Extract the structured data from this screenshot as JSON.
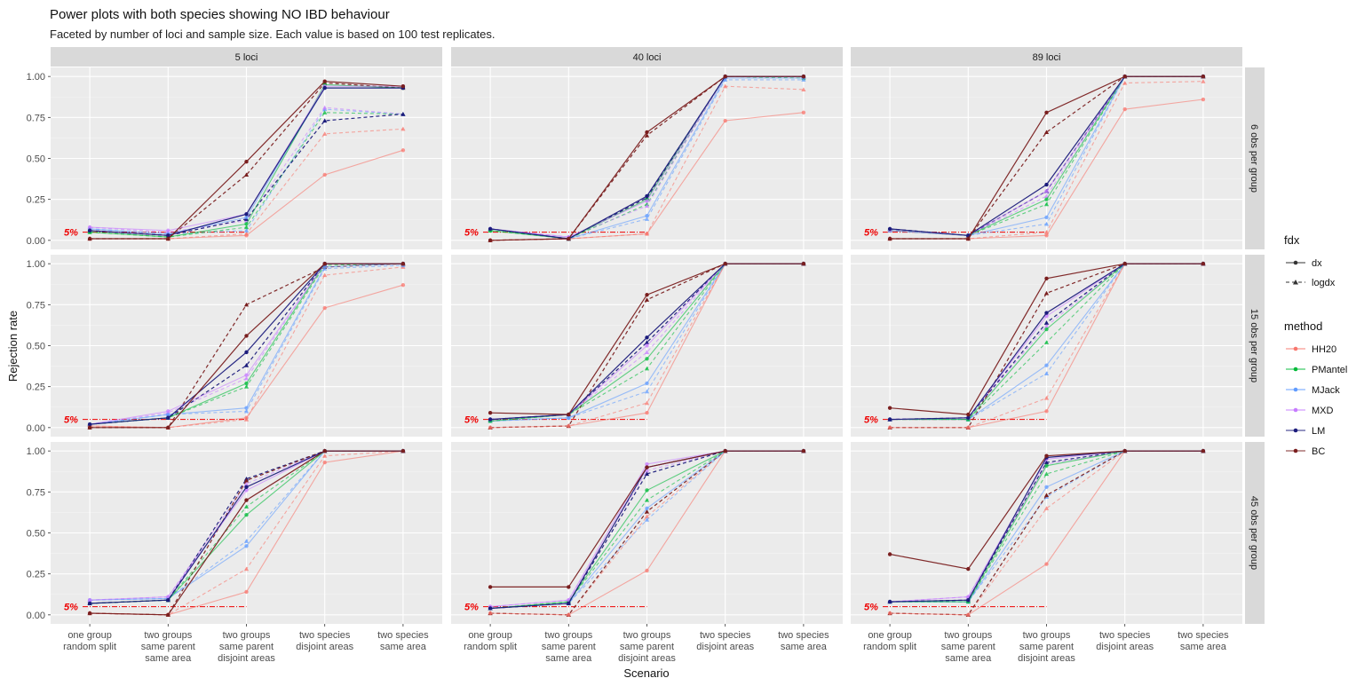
{
  "chart_data": {
    "type": "line",
    "title": "Power plots with both species showing NO IBD behaviour",
    "subtitle": "Faceted by number of loci and sample size. Each value is based on 100 test replicates.",
    "xlabel": "Scenario",
    "ylabel": "Rejection rate",
    "ylim": [
      0,
      1
    ],
    "yticks": [
      "0.00",
      "0.25",
      "0.50",
      "0.75",
      "1.00"
    ],
    "categories": [
      [
        "one group",
        "random split"
      ],
      [
        "two groups",
        "same parent",
        "same area"
      ],
      [
        "two groups",
        "same parent",
        "disjoint areas"
      ],
      [
        "two species",
        "disjoint areas"
      ],
      [
        "two species",
        "same area"
      ]
    ],
    "reference_line": {
      "value": 0.05,
      "label": "5%",
      "color": "#ee0000"
    },
    "col_facets": [
      "5 loci",
      "40 loci",
      "89 loci"
    ],
    "row_facets": [
      "6 obs per group",
      "15 obs per group",
      "45 obs per group"
    ],
    "legend": {
      "fdx_title": "fdx",
      "fdx": [
        {
          "label": "dx",
          "line": "solid",
          "marker": "circle"
        },
        {
          "label": "logdx",
          "line": "dashed",
          "marker": "triangle"
        }
      ],
      "method_title": "method",
      "methods": [
        {
          "label": "HH20",
          "color": "#f8766d"
        },
        {
          "label": "PMantel",
          "color": "#00ba38"
        },
        {
          "label": "MJack",
          "color": "#619cff"
        },
        {
          "label": "MXD",
          "color": "#c77cff"
        },
        {
          "label": "LM",
          "color": "#1c1c7c"
        },
        {
          "label": "BC",
          "color": "#7a1f1f"
        }
      ]
    },
    "panels": [
      {
        "row": 0,
        "col": 0,
        "series": {
          "HH20": {
            "dx": [
              0.01,
              0.01,
              0.03,
              0.4,
              0.55
            ],
            "logdx": [
              0.01,
              0.01,
              0.04,
              0.65,
              0.68
            ]
          },
          "PMantel": {
            "dx": [
              0.05,
              0.02,
              0.1,
              0.95,
              0.93
            ],
            "logdx": [
              0.05,
              0.02,
              0.08,
              0.78,
              0.77
            ]
          },
          "MJack": {
            "dx": [
              0.07,
              0.04,
              0.14,
              0.93,
              0.93
            ],
            "logdx": [
              0.07,
              0.04,
              0.06,
              0.8,
              0.77
            ]
          },
          "MXD": {
            "dx": [
              0.08,
              0.06,
              0.16,
              0.94,
              0.94
            ],
            "logdx": [
              0.08,
              0.05,
              0.12,
              0.81,
              0.77
            ]
          },
          "LM": {
            "dx": [
              0.06,
              0.03,
              0.16,
              0.93,
              0.93
            ],
            "logdx": [
              0.06,
              0.03,
              0.13,
              0.73,
              0.77
            ]
          },
          "BC": {
            "dx": [
              0.01,
              0.01,
              0.48,
              0.97,
              0.94
            ],
            "logdx": [
              0.01,
              0.01,
              0.4,
              0.96,
              0.93
            ]
          }
        }
      },
      {
        "row": 0,
        "col": 1,
        "series": {
          "HH20": {
            "dx": [
              0.0,
              0.01,
              0.04,
              0.73,
              0.78
            ],
            "logdx": [
              0.0,
              0.01,
              0.04,
              0.94,
              0.92
            ]
          },
          "PMantel": {
            "dx": [
              0.06,
              0.01,
              0.25,
              1.0,
              1.0
            ],
            "logdx": [
              0.06,
              0.01,
              0.22,
              1.0,
              0.99
            ]
          },
          "MJack": {
            "dx": [
              0.07,
              0.01,
              0.15,
              0.99,
              0.99
            ],
            "logdx": [
              0.07,
              0.01,
              0.13,
              0.98,
              0.98
            ]
          },
          "MXD": {
            "dx": [
              0.07,
              0.02,
              0.24,
              1.0,
              1.0
            ],
            "logdx": [
              0.07,
              0.02,
              0.21,
              1.0,
              1.0
            ]
          },
          "LM": {
            "dx": [
              0.07,
              0.01,
              0.27,
              1.0,
              1.0
            ],
            "logdx": [
              0.07,
              0.01,
              0.26,
              1.0,
              1.0
            ]
          },
          "BC": {
            "dx": [
              0.0,
              0.01,
              0.66,
              1.0,
              1.0
            ],
            "logdx": [
              0.0,
              0.01,
              0.64,
              1.0,
              1.0
            ]
          }
        }
      },
      {
        "row": 0,
        "col": 2,
        "series": {
          "HH20": {
            "dx": [
              0.01,
              0.01,
              0.03,
              0.8,
              0.86
            ],
            "logdx": [
              0.01,
              0.01,
              0.05,
              0.96,
              0.97
            ]
          },
          "PMantel": {
            "dx": [
              0.06,
              0.03,
              0.25,
              1.0,
              1.0
            ],
            "logdx": [
              0.06,
              0.03,
              0.22,
              1.0,
              1.0
            ]
          },
          "MJack": {
            "dx": [
              0.06,
              0.03,
              0.14,
              1.0,
              1.0
            ],
            "logdx": [
              0.06,
              0.03,
              0.1,
              1.0,
              1.0
            ]
          },
          "MXD": {
            "dx": [
              0.06,
              0.03,
              0.3,
              1.0,
              1.0
            ],
            "logdx": [
              0.06,
              0.03,
              0.27,
              1.0,
              1.0
            ]
          },
          "LM": {
            "dx": [
              0.07,
              0.03,
              0.34,
              1.0,
              1.0
            ],
            "logdx": [
              0.07,
              0.03,
              0.3,
              1.0,
              1.0
            ]
          },
          "BC": {
            "dx": [
              0.01,
              0.01,
              0.78,
              1.0,
              1.0
            ],
            "logdx": [
              0.01,
              0.01,
              0.66,
              1.0,
              1.0
            ]
          }
        }
      },
      {
        "row": 1,
        "col": 0,
        "series": {
          "HH20": {
            "dx": [
              0.01,
              0.0,
              0.06,
              0.73,
              0.87
            ],
            "logdx": [
              0.01,
              0.0,
              0.05,
              0.93,
              0.98
            ]
          },
          "PMantel": {
            "dx": [
              0.02,
              0.06,
              0.27,
              1.0,
              1.0
            ],
            "logdx": [
              0.02,
              0.06,
              0.25,
              0.99,
              1.0
            ]
          },
          "MJack": {
            "dx": [
              0.02,
              0.08,
              0.12,
              0.98,
              1.0
            ],
            "logdx": [
              0.02,
              0.08,
              0.1,
              0.97,
              0.99
            ]
          },
          "MXD": {
            "dx": [
              0.02,
              0.1,
              0.32,
              1.0,
              1.0
            ],
            "logdx": [
              0.02,
              0.09,
              0.3,
              1.0,
              1.0
            ]
          },
          "LM": {
            "dx": [
              0.02,
              0.06,
              0.46,
              1.0,
              1.0
            ],
            "logdx": [
              0.02,
              0.06,
              0.38,
              1.0,
              1.0
            ]
          },
          "BC": {
            "dx": [
              0.0,
              0.0,
              0.56,
              1.0,
              1.0
            ],
            "logdx": [
              0.0,
              0.0,
              0.75,
              0.98,
              1.0
            ]
          }
        }
      },
      {
        "row": 1,
        "col": 1,
        "series": {
          "HH20": {
            "dx": [
              0.0,
              0.01,
              0.09,
              1.0,
              1.0
            ],
            "logdx": [
              0.0,
              0.01,
              0.15,
              1.0,
              1.0
            ]
          },
          "PMantel": {
            "dx": [
              0.04,
              0.08,
              0.42,
              1.0,
              1.0
            ],
            "logdx": [
              0.04,
              0.08,
              0.36,
              1.0,
              1.0
            ]
          },
          "MJack": {
            "dx": [
              0.04,
              0.06,
              0.27,
              1.0,
              1.0
            ],
            "logdx": [
              0.04,
              0.06,
              0.22,
              1.0,
              1.0
            ]
          },
          "MXD": {
            "dx": [
              0.05,
              0.08,
              0.5,
              1.0,
              1.0
            ],
            "logdx": [
              0.05,
              0.08,
              0.46,
              1.0,
              1.0
            ]
          },
          "LM": {
            "dx": [
              0.05,
              0.08,
              0.55,
              1.0,
              1.0
            ],
            "logdx": [
              0.05,
              0.08,
              0.52,
              1.0,
              1.0
            ]
          },
          "BC": {
            "dx": [
              0.09,
              0.08,
              0.81,
              1.0,
              1.0
            ],
            "logdx": [
              0.0,
              0.01,
              0.78,
              1.0,
              1.0
            ]
          }
        }
      },
      {
        "row": 1,
        "col": 2,
        "series": {
          "HH20": {
            "dx": [
              0.0,
              0.0,
              0.1,
              1.0,
              1.0
            ],
            "logdx": [
              0.0,
              0.0,
              0.18,
              1.0,
              1.0
            ]
          },
          "PMantel": {
            "dx": [
              0.05,
              0.05,
              0.6,
              1.0,
              1.0
            ],
            "logdx": [
              0.05,
              0.05,
              0.52,
              1.0,
              1.0
            ]
          },
          "MJack": {
            "dx": [
              0.05,
              0.05,
              0.38,
              1.0,
              1.0
            ],
            "logdx": [
              0.05,
              0.05,
              0.33,
              1.0,
              1.0
            ]
          },
          "MXD": {
            "dx": [
              0.05,
              0.06,
              0.68,
              1.0,
              1.0
            ],
            "logdx": [
              0.05,
              0.06,
              0.62,
              1.0,
              1.0
            ]
          },
          "LM": {
            "dx": [
              0.05,
              0.06,
              0.7,
              1.0,
              1.0
            ],
            "logdx": [
              0.05,
              0.06,
              0.64,
              1.0,
              1.0
            ]
          },
          "BC": {
            "dx": [
              0.12,
              0.08,
              0.91,
              1.0,
              1.0
            ],
            "logdx": [
              0.0,
              0.0,
              0.82,
              1.0,
              1.0
            ]
          }
        }
      },
      {
        "row": 2,
        "col": 0,
        "series": {
          "HH20": {
            "dx": [
              0.01,
              0.0,
              0.14,
              0.93,
              1.0
            ],
            "logdx": [
              0.01,
              0.0,
              0.28,
              0.97,
              1.0
            ]
          },
          "PMantel": {
            "dx": [
              0.07,
              0.09,
              0.61,
              1.0,
              1.0
            ],
            "logdx": [
              0.07,
              0.09,
              0.66,
              1.0,
              1.0
            ]
          },
          "MJack": {
            "dx": [
              0.09,
              0.1,
              0.42,
              1.0,
              1.0
            ],
            "logdx": [
              0.09,
              0.1,
              0.45,
              1.0,
              1.0
            ]
          },
          "MXD": {
            "dx": [
              0.09,
              0.11,
              0.76,
              1.0,
              1.0
            ],
            "logdx": [
              0.09,
              0.11,
              0.8,
              1.0,
              1.0
            ]
          },
          "LM": {
            "dx": [
              0.07,
              0.09,
              0.78,
              1.0,
              1.0
            ],
            "logdx": [
              0.07,
              0.09,
              0.83,
              1.0,
              1.0
            ]
          },
          "BC": {
            "dx": [
              0.01,
              0.0,
              0.7,
              1.0,
              1.0
            ],
            "logdx": [
              0.01,
              0.0,
              0.82,
              1.0,
              1.0
            ]
          }
        }
      },
      {
        "row": 2,
        "col": 1,
        "series": {
          "HH20": {
            "dx": [
              0.01,
              0.0,
              0.27,
              1.0,
              1.0
            ],
            "logdx": [
              0.01,
              0.0,
              0.6,
              1.0,
              1.0
            ]
          },
          "PMantel": {
            "dx": [
              0.04,
              0.08,
              0.76,
              1.0,
              1.0
            ],
            "logdx": [
              0.04,
              0.08,
              0.7,
              1.0,
              1.0
            ]
          },
          "MJack": {
            "dx": [
              0.04,
              0.07,
              0.65,
              1.0,
              1.0
            ],
            "logdx": [
              0.04,
              0.07,
              0.58,
              1.0,
              1.0
            ]
          },
          "MXD": {
            "dx": [
              0.05,
              0.09,
              0.92,
              1.0,
              1.0
            ],
            "logdx": [
              0.05,
              0.09,
              0.88,
              1.0,
              1.0
            ]
          },
          "LM": {
            "dx": [
              0.04,
              0.07,
              0.9,
              1.0,
              1.0
            ],
            "logdx": [
              0.04,
              0.07,
              0.86,
              1.0,
              1.0
            ]
          },
          "BC": {
            "dx": [
              0.17,
              0.17,
              0.9,
              1.0,
              1.0
            ],
            "logdx": [
              0.01,
              0.0,
              0.63,
              1.0,
              1.0
            ]
          }
        }
      },
      {
        "row": 2,
        "col": 2,
        "series": {
          "HH20": {
            "dx": [
              0.01,
              0.0,
              0.31,
              1.0,
              1.0
            ],
            "logdx": [
              0.01,
              0.0,
              0.65,
              1.0,
              1.0
            ]
          },
          "PMantel": {
            "dx": [
              0.08,
              0.08,
              0.91,
              1.0,
              1.0
            ],
            "logdx": [
              0.08,
              0.08,
              0.86,
              1.0,
              1.0
            ]
          },
          "MJack": {
            "dx": [
              0.08,
              0.08,
              0.78,
              1.0,
              1.0
            ],
            "logdx": [
              0.08,
              0.08,
              0.72,
              1.0,
              1.0
            ]
          },
          "MXD": {
            "dx": [
              0.08,
              0.11,
              0.95,
              1.0,
              1.0
            ],
            "logdx": [
              0.08,
              0.11,
              0.92,
              1.0,
              1.0
            ]
          },
          "LM": {
            "dx": [
              0.08,
              0.09,
              0.96,
              1.0,
              1.0
            ],
            "logdx": [
              0.08,
              0.09,
              0.93,
              1.0,
              1.0
            ]
          },
          "BC": {
            "dx": [
              0.37,
              0.28,
              0.97,
              1.0,
              1.0
            ],
            "logdx": [
              0.01,
              0.0,
              0.73,
              1.0,
              1.0
            ]
          }
        }
      }
    ]
  }
}
